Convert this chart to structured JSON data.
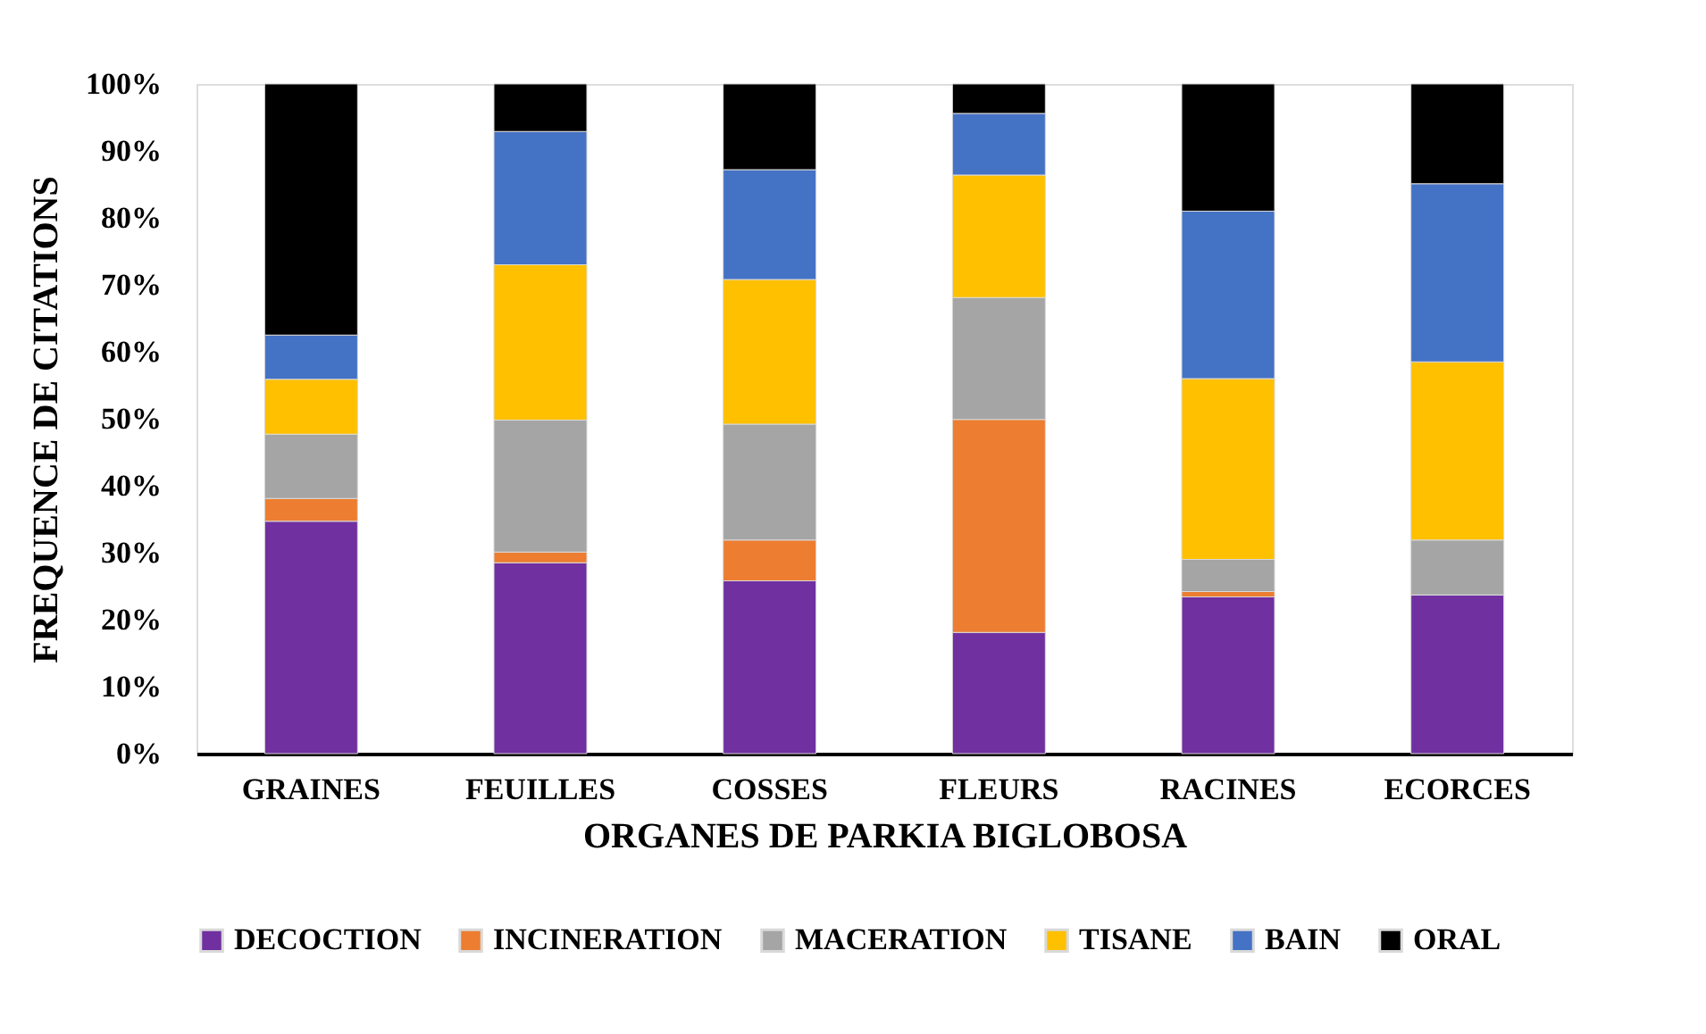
{
  "chart_data": {
    "type": "bar",
    "stacked": true,
    "xlabel": "ORGANES DE PARKIA BIGLOBOSA",
    "ylabel": "FREQUENCE DE CITATIONS",
    "categories": [
      "GRAINES",
      "FEUILLES",
      "COSSES",
      "FLEURS",
      "RACINES",
      "ECORCES"
    ],
    "series": [
      {
        "name": "DECOCTION",
        "color": "#7030a0",
        "values": [
          34.7,
          28.5,
          25.8,
          18.1,
          23.4,
          23.7
        ]
      },
      {
        "name": "INCINERATION",
        "color": "#ed7d31",
        "values": [
          3.4,
          1.6,
          6.1,
          31.8,
          0.8,
          0
        ]
      },
      {
        "name": "MACERATION",
        "color": "#a5a5a5",
        "values": [
          9.6,
          19.7,
          17.3,
          18.2,
          4.8,
          8.2
        ]
      },
      {
        "name": "TISANE",
        "color": "#ffc000",
        "values": [
          8.2,
          23.2,
          21.6,
          18.3,
          27.0,
          26.6
        ]
      },
      {
        "name": "BAIN",
        "color": "#4472c4",
        "values": [
          6.6,
          19.9,
          16.4,
          9.2,
          25.0,
          26.6
        ]
      },
      {
        "name": "ORAL",
        "color": "#000000",
        "values": [
          37.5,
          7.1,
          12.8,
          4.4,
          19.0,
          14.9
        ]
      }
    ],
    "ylim": [
      0,
      100
    ],
    "yticks": [
      {
        "value": 0,
        "label": "0%"
      },
      {
        "value": 10,
        "label": "10%"
      },
      {
        "value": 20,
        "label": "20%"
      },
      {
        "value": 30,
        "label": "30%"
      },
      {
        "value": 40,
        "label": "40%"
      },
      {
        "value": 50,
        "label": "50%"
      },
      {
        "value": 60,
        "label": "60%"
      },
      {
        "value": 70,
        "label": "70%"
      },
      {
        "value": 80,
        "label": "80%"
      },
      {
        "value": 90,
        "label": "90%"
      },
      {
        "value": 100,
        "label": "100%"
      }
    ],
    "grid": false,
    "legend": "bottom"
  }
}
